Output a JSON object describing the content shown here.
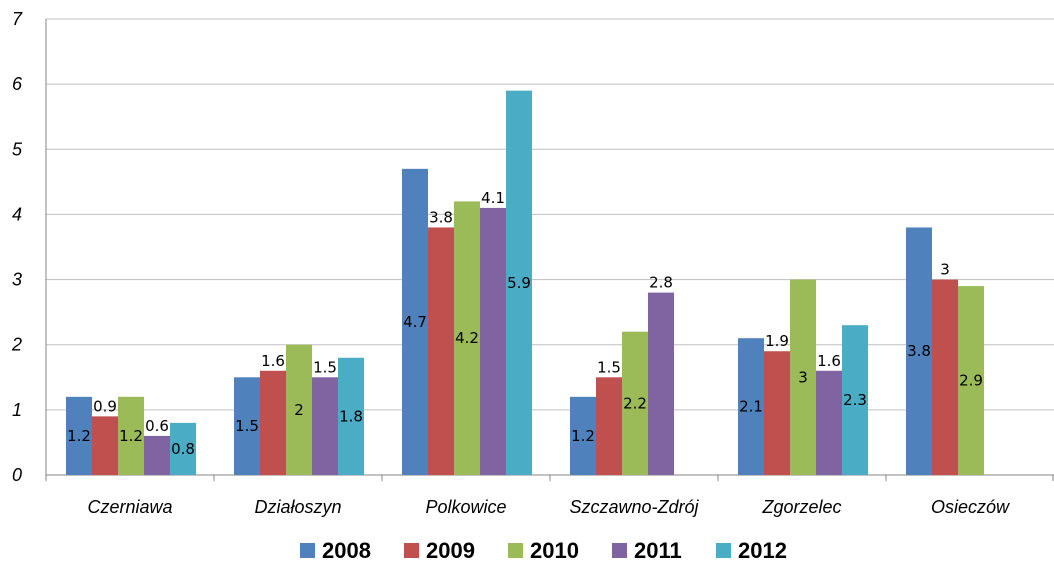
{
  "chart_data": {
    "type": "bar",
    "categories": [
      "Czerniawa",
      "Działoszyn",
      "Polkowice",
      "Szczawno-Zdrój",
      "Zgorzelec",
      "Osieczów"
    ],
    "series": [
      {
        "name": "2008",
        "color": "#4F81BD",
        "values": [
          1.2,
          1.5,
          4.7,
          1.2,
          2.1,
          3.8
        ]
      },
      {
        "name": "2009",
        "color": "#C0504D",
        "values": [
          0.9,
          1.6,
          3.8,
          1.5,
          1.9,
          3.0
        ]
      },
      {
        "name": "2010",
        "color": "#9BBB59",
        "values": [
          1.2,
          2.0,
          4.2,
          2.2,
          3.0,
          2.9
        ]
      },
      {
        "name": "2011",
        "color": "#8064A2",
        "values": [
          0.6,
          1.5,
          4.1,
          2.8,
          1.6,
          null
        ]
      },
      {
        "name": "2012",
        "color": "#4BACC6",
        "values": [
          0.8,
          1.8,
          5.9,
          null,
          2.3,
          null
        ]
      }
    ],
    "data_labels": [
      [
        "1.2",
        "1.5",
        "4.7",
        "1.2",
        "2.1",
        "3.8"
      ],
      [
        "0.9",
        "1.6",
        "3.8",
        "1.5",
        "1.9",
        "3"
      ],
      [
        "1.2",
        "2",
        "4.2",
        "2.2",
        "3",
        "2.9"
      ],
      [
        "0.6",
        "1.5",
        "4.1",
        "2.8",
        "1.6",
        null
      ],
      [
        "0.8",
        "1.8",
        "5.9",
        null,
        "2.3",
        null
      ]
    ],
    "label_position": [
      [
        "inside",
        "inside",
        "inside",
        "inside",
        "inside",
        "inside"
      ],
      [
        "above",
        "above",
        "above",
        "above",
        "above",
        "above"
      ],
      [
        "inside",
        "inside",
        "inside",
        "inside",
        "inside",
        "inside"
      ],
      [
        "above",
        "above",
        "above",
        "above",
        "above",
        null
      ],
      [
        "inside",
        "inside",
        "inside",
        null,
        "inside",
        null
      ]
    ],
    "ylim": [
      0,
      7
    ],
    "yticks": [
      "0",
      "1",
      "2",
      "3",
      "4",
      "5",
      "6",
      "7"
    ],
    "grid": true,
    "legend_position": "bottom",
    "title": "",
    "xlabel": "",
    "ylabel": ""
  }
}
